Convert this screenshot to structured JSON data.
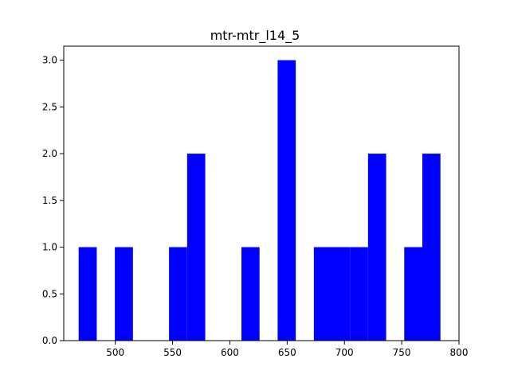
{
  "chart_data": {
    "type": "bar",
    "title": "mtr-mtr_l14_5",
    "xlabel": "",
    "ylabel": "",
    "xlim": [
      455,
      800
    ],
    "ylim": [
      0,
      3.15
    ],
    "bar_color": "#0000ff",
    "bin_width": 15.8,
    "bins": [
      {
        "start": 468.0,
        "value": 1
      },
      {
        "start": 499.6,
        "value": 1
      },
      {
        "start": 546.9,
        "value": 1
      },
      {
        "start": 562.7,
        "value": 2
      },
      {
        "start": 610.1,
        "value": 1
      },
      {
        "start": 641.7,
        "value": 3
      },
      {
        "start": 673.3,
        "value": 1
      },
      {
        "start": 689.0,
        "value": 1
      },
      {
        "start": 704.8,
        "value": 1
      },
      {
        "start": 720.6,
        "value": 2
      },
      {
        "start": 752.2,
        "value": 1
      },
      {
        "start": 768.0,
        "value": 2
      }
    ],
    "x_ticks": [
      500,
      550,
      600,
      650,
      700,
      750,
      800
    ],
    "x_tick_labels": [
      "500",
      "550",
      "600",
      "650",
      "700",
      "750",
      "800"
    ],
    "y_ticks": [
      0.0,
      0.5,
      1.0,
      1.5,
      2.0,
      2.5,
      3.0
    ],
    "y_tick_labels": [
      "0.0",
      "0.5",
      "1.0",
      "1.5",
      "2.0",
      "2.5",
      "3.0"
    ],
    "grid": false,
    "legend": "none"
  }
}
